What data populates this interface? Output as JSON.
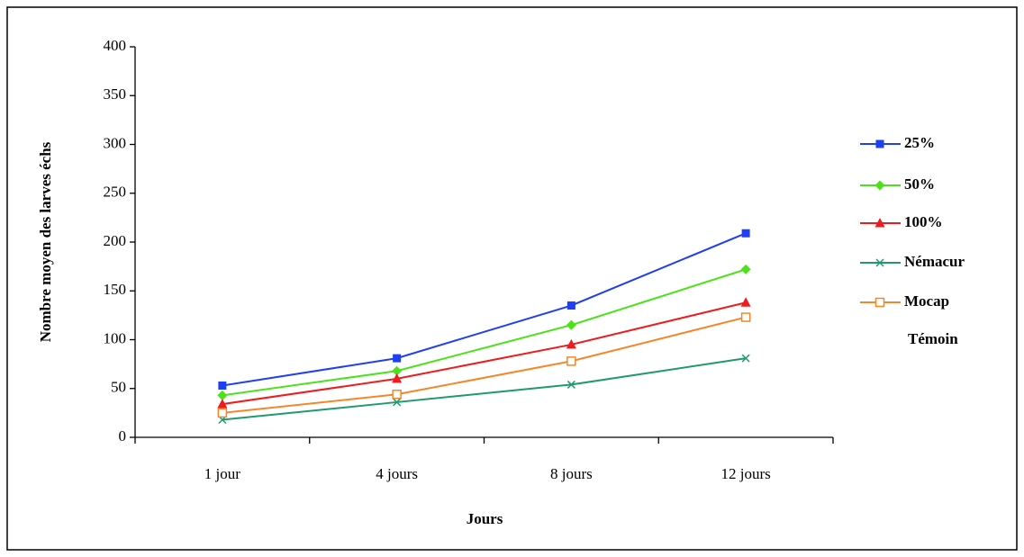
{
  "chart_data": {
    "type": "line",
    "x_label": "Jours",
    "y_label": "Nombre moyen des larves échs",
    "categories": [
      "1 jour",
      "4 jours",
      "8 jours",
      "12 jours"
    ],
    "series": [
      {
        "name": "25%",
        "color": "#1f3ff0",
        "marker": "square",
        "values": [
          53,
          81,
          135,
          209
        ]
      },
      {
        "name": "50%",
        "color": "#4ce21a",
        "marker": "diamond",
        "values": [
          43,
          68,
          115,
          172
        ]
      },
      {
        "name": "100%",
        "color": "#ee1c1c",
        "marker": "triangle",
        "values": [
          34,
          60,
          95,
          138
        ]
      },
      {
        "name": "Némacur",
        "color": "#1f9a6e",
        "marker": "x",
        "values": [
          18,
          36,
          54,
          81
        ]
      },
      {
        "name": "Mocap",
        "color": "#f5862a",
        "marker": "open-square",
        "values": [
          25,
          44,
          78,
          123
        ]
      },
      {
        "name": "Témoin",
        "values": [
          null,
          null,
          null,
          null
        ]
      }
    ],
    "ylim": [
      0,
      400
    ],
    "yticks": [
      0,
      50,
      100,
      150,
      200,
      250,
      300,
      350,
      400
    ],
    "grid": false,
    "legend": "right"
  }
}
